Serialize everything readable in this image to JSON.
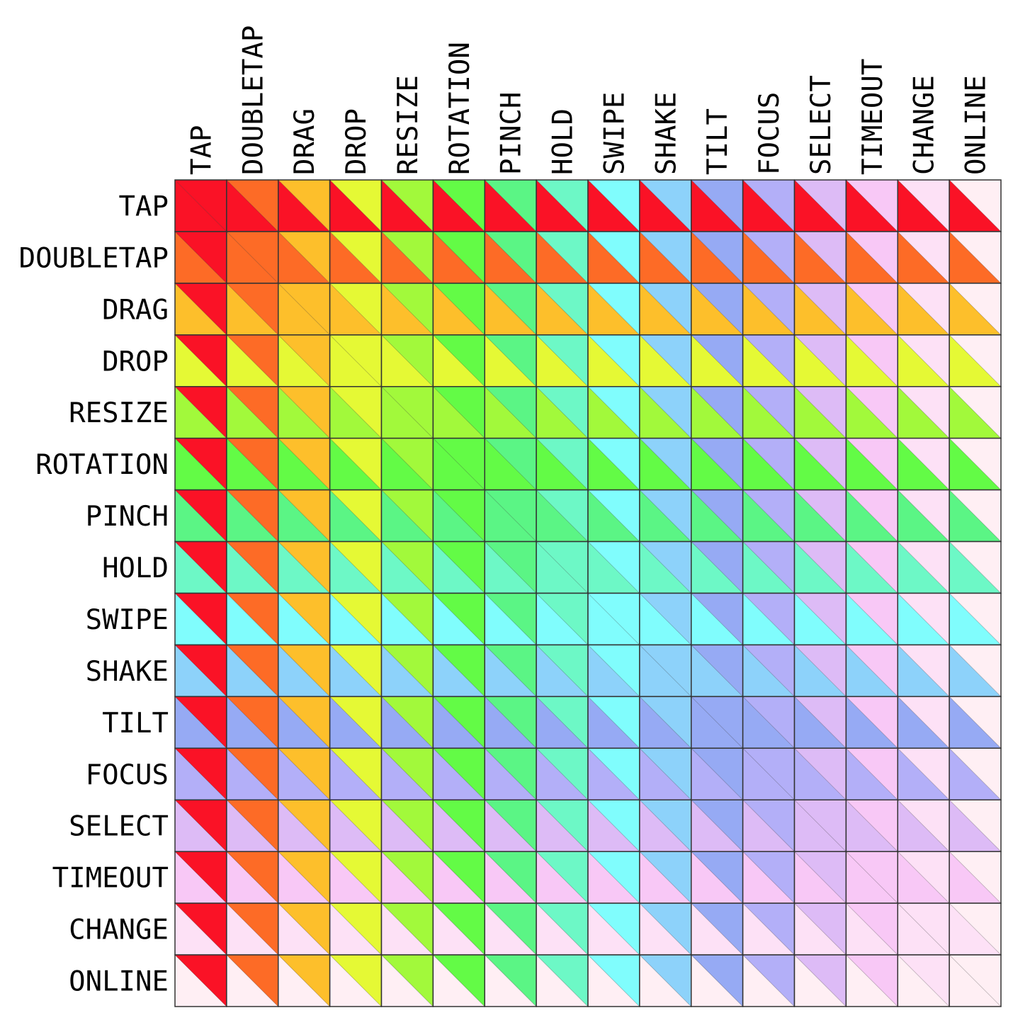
{
  "matrix": {
    "labels": [
      "TAP",
      "DOUBLETAP",
      "DRAG",
      "DROP",
      "RESIZE",
      "ROTATION",
      "PINCH",
      "HOLD",
      "SWIPE",
      "SHAKE",
      "TILT",
      "FOCUS",
      "SELECT",
      "TIMEOUT",
      "CHANGE",
      "ONLINE"
    ],
    "colors": [
      "#fa1226",
      "#fd6b26",
      "#fdbf2b",
      "#e5f935",
      "#a2f93b",
      "#63fb46",
      "#5bf585",
      "#6df8c6",
      "#80fdfd",
      "#8dd2fa",
      "#96aaf4",
      "#b3aff8",
      "#ddbbf6",
      "#f8c8f6",
      "#fde1f6",
      "#ffeff4"
    ],
    "upper_triangle_color": "row",
    "lower_triangle_color": "column"
  }
}
